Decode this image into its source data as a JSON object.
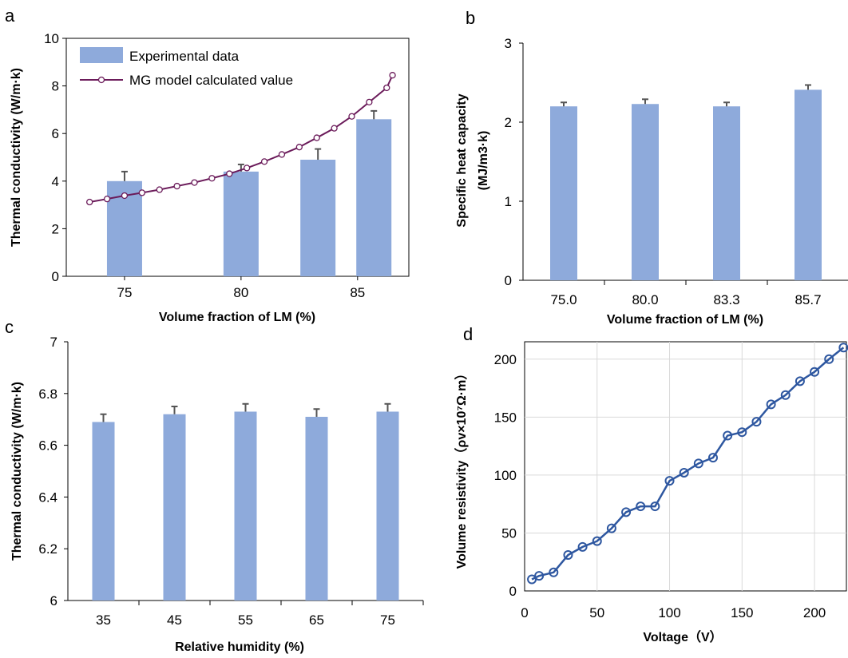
{
  "colors": {
    "bar": "#8eaadb",
    "errorbar": "#555555",
    "model_line": "#6b1b5a",
    "model_marker_fill": "#ffffff",
    "resistivity_line": "#2e57a0",
    "grid": "#d9d9d9"
  },
  "chart_data": [
    {
      "panel": "a",
      "type": "bar",
      "xlabel": "Volume fraction of LM (%)",
      "ylabel": "Thermal conductivity (W/m·k)",
      "ylim": [
        0,
        10
      ],
      "yticks": [
        0,
        2,
        4,
        6,
        8,
        10
      ],
      "xlim": [
        72.5,
        87.2
      ],
      "xticks": [
        75,
        80,
        85
      ],
      "legend_position": "top-left",
      "series": [
        {
          "name": "Experimental data",
          "kind": "bar",
          "x": [
            75,
            80,
            83.3,
            85.7
          ],
          "values": [
            4.0,
            4.4,
            4.9,
            6.6
          ],
          "errors": [
            0.4,
            0.3,
            0.45,
            0.35
          ]
        },
        {
          "name": "MG model calculated value",
          "kind": "line",
          "x": [
            73.5,
            74.25,
            75.0,
            75.75,
            76.5,
            77.25,
            78.0,
            78.75,
            79.5,
            80.25,
            81.0,
            81.75,
            82.5,
            83.25,
            84.0,
            84.75,
            85.5,
            86.25
          ],
          "values": [
            3.12,
            3.25,
            3.39,
            3.51,
            3.64,
            3.79,
            3.94,
            4.12,
            4.31,
            4.55,
            4.82,
            5.12,
            5.43,
            5.82,
            6.22,
            6.72,
            7.32,
            7.92
          ],
          "extra_point": {
            "x": 86.5,
            "y": 8.45
          }
        }
      ]
    },
    {
      "panel": "b",
      "type": "bar",
      "xlabel": "Volume fraction of LM (%)",
      "ylabel": "Specific heat capacity",
      "ylabel2": "(MJ/m3·k)",
      "ylim": [
        0,
        3
      ],
      "yticks": [
        0,
        1,
        2,
        3
      ],
      "categories": [
        "75.0",
        "80.0",
        "83.3",
        "85.7"
      ],
      "values": [
        2.2,
        2.23,
        2.2,
        2.41
      ],
      "errors": [
        0.05,
        0.06,
        0.05,
        0.06
      ]
    },
    {
      "panel": "c",
      "type": "bar",
      "xlabel": "Relative humidity (%)",
      "ylabel": "Thermal conductivity (W/m·k)",
      "ylim": [
        6,
        7
      ],
      "yticks": [
        "6",
        "6.2",
        "6.4",
        "6.6",
        "6.8",
        "7"
      ],
      "ytick_values": [
        6,
        6.2,
        6.4,
        6.6,
        6.8,
        7
      ],
      "categories": [
        "35",
        "45",
        "55",
        "65",
        "75"
      ],
      "values": [
        6.69,
        6.72,
        6.73,
        6.71,
        6.73
      ],
      "errors": [
        0.03,
        0.03,
        0.03,
        0.03,
        0.03
      ]
    },
    {
      "panel": "d",
      "type": "line",
      "xlabel": "Voltage（V）",
      "ylabel": "Volume resistivity（ρv×10⁷Ω·m）",
      "xlim": [
        0,
        222
      ],
      "ylim": [
        0,
        215
      ],
      "xticks": [
        0,
        50,
        100,
        150,
        200
      ],
      "yticks": [
        0,
        50,
        100,
        150,
        200
      ],
      "grid": true,
      "x": [
        5,
        10,
        20,
        30,
        40,
        50,
        60,
        70,
        80,
        90,
        100,
        110,
        120,
        130,
        140,
        150,
        160,
        170,
        180,
        190,
        200,
        210,
        220
      ],
      "y": [
        10,
        13,
        16,
        31,
        38,
        43,
        54,
        68,
        73,
        73,
        95,
        102,
        110,
        115,
        134,
        137,
        146,
        161,
        169,
        181,
        189,
        200,
        210
      ]
    }
  ]
}
